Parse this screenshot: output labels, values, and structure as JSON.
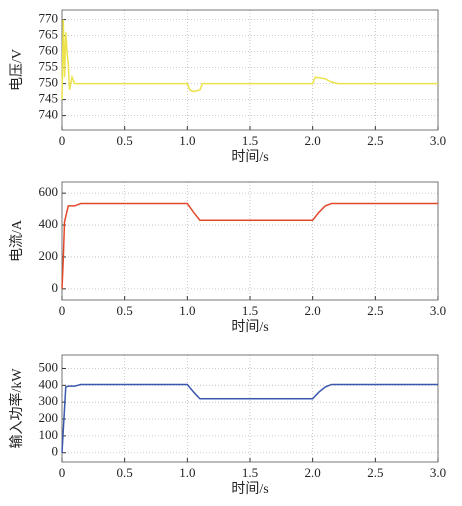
{
  "chart_data": [
    {
      "type": "line",
      "ylabel": "电压/V",
      "xlabel": "时间/s",
      "color": "#ece24a",
      "x": [
        0,
        0.01,
        0.02,
        0.03,
        0.04,
        0.05,
        0.06,
        0.08,
        0.1,
        0.15,
        1.0,
        1.02,
        1.05,
        1.1,
        1.12,
        1.2,
        2.0,
        2.02,
        2.1,
        2.15,
        2.2,
        3.0
      ],
      "values": [
        745,
        770,
        752,
        766,
        760,
        756,
        748,
        752,
        750,
        750,
        750,
        748,
        747.5,
        748,
        750,
        750,
        750,
        752,
        751.5,
        750.5,
        750,
        750
      ],
      "xlim": [
        0,
        3
      ],
      "xticks": [
        0,
        0.5,
        {
          "value": 1,
          "label": "1.0"
        },
        1.5,
        {
          "value": 2,
          "label": "2.0"
        },
        2.5,
        {
          "value": 3,
          "label": "3.0"
        }
      ],
      "ylim": [
        735.5,
        773
      ],
      "yticks": [
        740,
        745,
        750,
        755,
        760,
        765,
        770
      ],
      "grid": true
    },
    {
      "type": "line",
      "ylabel": "电流/A",
      "xlabel": "时间/s",
      "color": "#e2492b",
      "x": [
        0,
        0.01,
        0.02,
        0.05,
        0.1,
        0.15,
        1.0,
        1.05,
        1.1,
        2.0,
        2.05,
        2.1,
        2.15,
        3.0
      ],
      "values": [
        0,
        180,
        420,
        520,
        520,
        535,
        535,
        480,
        430,
        430,
        480,
        520,
        535,
        535
      ],
      "xlim": [
        0,
        3
      ],
      "xticks": [
        0,
        0.5,
        {
          "value": 1,
          "label": "1.0"
        },
        1.5,
        {
          "value": 2,
          "label": "2.0"
        },
        2.5,
        {
          "value": 3,
          "label": "3.0"
        }
      ],
      "ylim": [
        -70,
        670
      ],
      "yticks": [
        0,
        200,
        400,
        600
      ],
      "grid": true
    },
    {
      "type": "line",
      "ylabel": "输入功率/kW",
      "xlabel": "时间/s",
      "color": "#3a58ac",
      "x": [
        0,
        0.01,
        0.03,
        0.05,
        0.1,
        0.15,
        1.0,
        1.05,
        1.1,
        2.0,
        2.05,
        2.1,
        2.15,
        3.0
      ],
      "values": [
        0,
        130,
        390,
        395,
        395,
        405,
        405,
        360,
        320,
        320,
        360,
        390,
        405,
        405
      ],
      "xlim": [
        0,
        3
      ],
      "xticks": [
        0,
        0.5,
        {
          "value": 1,
          "label": "1.0"
        },
        1.5,
        {
          "value": 2,
          "label": "2.0"
        },
        2.5,
        {
          "value": 3,
          "label": "3.0"
        }
      ],
      "ylim": [
        -55,
        580
      ],
      "yticks": [
        0,
        100,
        200,
        300,
        400,
        500
      ],
      "grid": true
    }
  ]
}
